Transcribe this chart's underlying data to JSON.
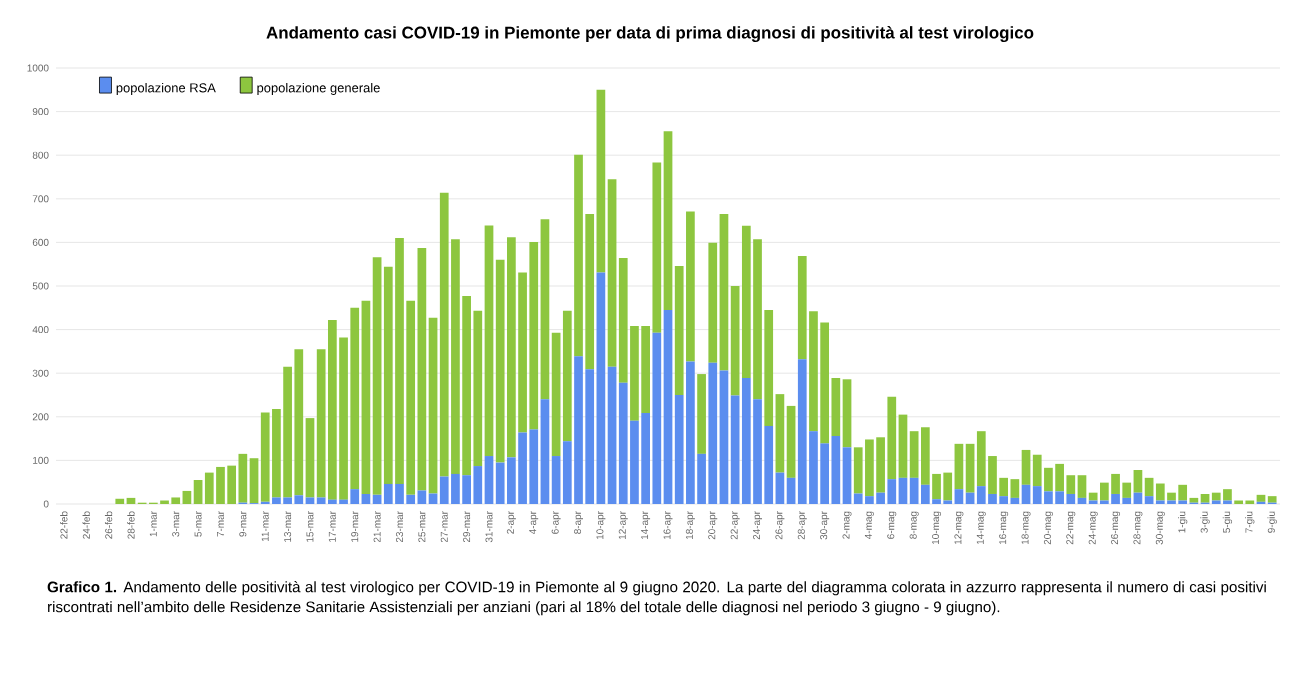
{
  "chart_data": {
    "type": "bar",
    "stacked": true,
    "title": "Andamento casi COVID-19 in Piemonte per data di prima diagnosi di positività al test virologico",
    "categories": [
      "22-feb",
      null,
      "24-feb",
      null,
      "26-feb",
      null,
      "28-feb",
      null,
      "1-mar",
      null,
      "3-mar",
      null,
      "5-mar",
      null,
      "7-mar",
      null,
      "9-mar",
      null,
      "11-mar",
      null,
      "13-mar",
      null,
      "15-mar",
      null,
      "17-mar",
      null,
      "19-mar",
      null,
      "21-mar",
      null,
      "23-mar",
      null,
      "25-mar",
      null,
      "27-mar",
      null,
      "29-mar",
      null,
      "31-mar",
      null,
      "2-apr",
      null,
      "4-apr",
      null,
      "6-apr",
      null,
      "8-apr",
      null,
      "10-apr",
      null,
      "12-apr",
      null,
      "14-apr",
      null,
      "16-apr",
      null,
      "18-apr",
      null,
      "20-apr",
      null,
      "22-apr",
      null,
      "24-apr",
      null,
      "26-apr",
      null,
      "28-apr",
      null,
      "30-apr",
      null,
      "2-mag",
      null,
      "4-mag",
      null,
      "6-mag",
      null,
      "8-mag",
      null,
      "10-mag",
      null,
      "12-mag",
      null,
      "14-mag",
      null,
      "16-mag",
      null,
      "18-mag",
      null,
      "20-mag",
      null,
      "22-mag",
      null,
      "24-mag",
      null,
      "26-mag",
      null,
      "28-mag",
      null,
      "30-mag",
      null,
      "1-giu",
      null,
      "3-giu",
      null,
      "5-giu",
      null,
      "7-giu",
      null,
      "9-giu"
    ],
    "series": [
      {
        "name": "popolazione RSA",
        "color": "#5b8def",
        "values": [
          0,
          0,
          0,
          0,
          0,
          0,
          0,
          0,
          0,
          0,
          0,
          0,
          0,
          0,
          0,
          0,
          3,
          2,
          5,
          15,
          15,
          20,
          15,
          15,
          10,
          10,
          34,
          23,
          21,
          46,
          46,
          21,
          31,
          24,
          63,
          69,
          66,
          87,
          110,
          95,
          107,
          164,
          171,
          240,
          110,
          144,
          339,
          309,
          531,
          315,
          278,
          191,
          209,
          393,
          445,
          250,
          327,
          115,
          324,
          306,
          249,
          289,
          240,
          179,
          72,
          60,
          332,
          167,
          139,
          156,
          130,
          24,
          18,
          26,
          57,
          60,
          60,
          44,
          11,
          8,
          34,
          26,
          41,
          23,
          18,
          14,
          44,
          41,
          29,
          29,
          23,
          14,
          8,
          8,
          23,
          14,
          26,
          18,
          8,
          8,
          8,
          3,
          3,
          8,
          8,
          0,
          0,
          5,
          3
        ]
      },
      {
        "name": "popolazione generale",
        "color": "#8dc63f",
        "values": [
          0,
          0,
          0,
          0,
          0,
          12,
          14,
          3,
          3,
          8,
          15,
          30,
          55,
          72,
          85,
          88,
          112,
          103,
          205,
          203,
          300,
          335,
          182,
          340,
          412,
          372,
          416,
          443,
          545,
          498,
          564,
          445,
          556,
          403,
          651,
          538,
          411,
          356,
          529,
          465,
          505,
          367,
          430,
          413,
          283,
          299,
          462,
          356,
          419,
          430,
          286,
          217,
          199,
          390,
          410,
          296,
          344,
          183,
          275,
          359,
          251,
          349,
          367,
          266,
          180,
          165,
          237,
          275,
          277,
          133,
          156,
          106,
          130,
          127,
          189,
          145,
          107,
          132,
          58,
          64,
          104,
          112,
          126,
          87,
          42,
          43,
          80,
          72,
          54,
          63,
          43,
          52,
          18,
          41,
          46,
          35,
          52,
          42,
          39,
          18,
          36,
          11,
          20,
          18,
          26,
          8,
          8,
          16,
          15
        ]
      }
    ],
    "ylim": [
      0,
      1000
    ],
    "yticks": [
      0,
      100,
      200,
      300,
      400,
      500,
      600,
      700,
      800,
      900,
      1000
    ],
    "grid": "y",
    "legend": "top left",
    "annotations": [
      "**Grafico 1.** Andamento delle positività al test virologico per COVID-19 in Piemonte al 9 giugno 2020. La parte del diagramma colorata in azzurro rappresenta il numero di casi positivi riscontrati nell’ambito delle Residenze Sanitarie Assistenziali per anziani (pari al 18% del totale delle diagnosi nel periodo 3 giugno - 9 giugno)."
    ]
  }
}
